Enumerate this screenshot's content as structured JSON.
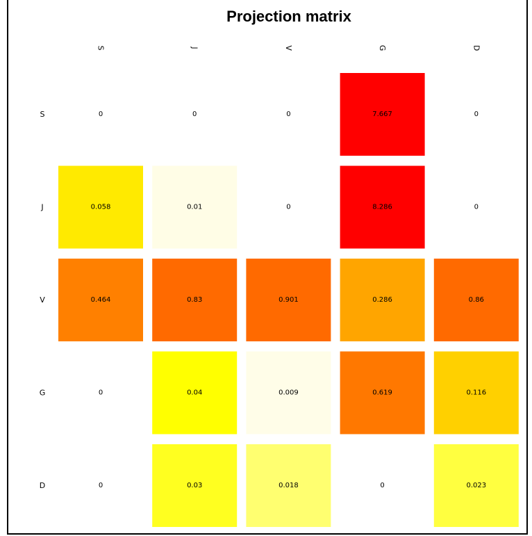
{
  "chart_data": {
    "type": "heatmap",
    "title": "Projection matrix",
    "column_labels": [
      "S",
      "J",
      "V",
      "G",
      "D"
    ],
    "row_labels": [
      "S",
      "J",
      "V",
      "G",
      "D"
    ],
    "values": [
      [
        "0",
        "0",
        "0",
        "7.667",
        "0"
      ],
      [
        "0.058",
        "0.01",
        "0",
        "8.286",
        "0"
      ],
      [
        "0.464",
        "0.83",
        "0.901",
        "0.286",
        "0.86"
      ],
      [
        "0",
        "0.04",
        "0.009",
        "0.619",
        "0.116"
      ],
      [
        "0",
        "0.03",
        "0.018",
        "0",
        "0.023"
      ]
    ],
    "cell_colors": [
      [
        null,
        null,
        null,
        "#ff0000",
        null
      ],
      [
        "#ffea00",
        "#fffde6",
        null,
        "#ff0000",
        null
      ],
      [
        "#ff8000",
        "#ff6a00",
        "#ff6a00",
        "#ffa500",
        "#ff6a00"
      ],
      [
        null,
        "#ffff00",
        "#fffde8",
        "#ff7800",
        "#ffd000"
      ],
      [
        null,
        "#ffff20",
        "#ffff70",
        null,
        "#ffff40"
      ]
    ],
    "column_label_rotation": "rotated-90",
    "grid": false,
    "legend": "none"
  }
}
